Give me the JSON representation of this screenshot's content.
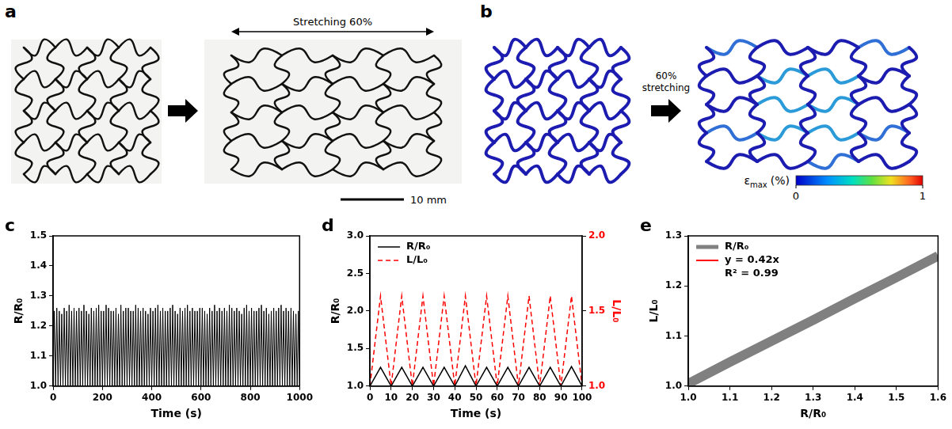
{
  "figure": {
    "a": {
      "panel": "a",
      "annotation": "Stretching 60%",
      "scale_bar": "10 mm"
    },
    "b": {
      "panel": "b",
      "annotation": "60% stretching",
      "colorbar": {
        "symbol": "ε",
        "subscript": "max",
        "unit": "(%)",
        "range": [
          0,
          1
        ],
        "ticks": [
          0,
          1
        ]
      }
    }
  },
  "chart_data": [
    {
      "panel": "c",
      "type": "line",
      "x": [
        0,
        5,
        10,
        15,
        20,
        25,
        30,
        35,
        40,
        45,
        50,
        55,
        60,
        65,
        70,
        75,
        80,
        85,
        90,
        95,
        100,
        105,
        110,
        115,
        120,
        125,
        130,
        135,
        140,
        145,
        150,
        155,
        160,
        165,
        170,
        175,
        180,
        185,
        190,
        195,
        200,
        205,
        210,
        215,
        220,
        225,
        230,
        235,
        240,
        245,
        250,
        255,
        260,
        265,
        270,
        275,
        280,
        285,
        290,
        295,
        300,
        305,
        310,
        315,
        320,
        325,
        330,
        335,
        340,
        345,
        350,
        355,
        360,
        365,
        370,
        375,
        380,
        385,
        390,
        395,
        400,
        405,
        410,
        415,
        420,
        425,
        430,
        435,
        440,
        445,
        450,
        455,
        460,
        465,
        470,
        475,
        480,
        485,
        490,
        495,
        500,
        505,
        510,
        515,
        520,
        525,
        530,
        535,
        540,
        545,
        550,
        555,
        560,
        565,
        570,
        575,
        580,
        585,
        590,
        595,
        600,
        605,
        610,
        615,
        620,
        625,
        630,
        635,
        640,
        645,
        650,
        655,
        660,
        665,
        670,
        675,
        680,
        685,
        690,
        695,
        700,
        705,
        710,
        715,
        720,
        725,
        730,
        735,
        740,
        745,
        750,
        755,
        760,
        765,
        770,
        775,
        780,
        785,
        790,
        795,
        800,
        805,
        810,
        815,
        820,
        825,
        830,
        835,
        840,
        845,
        850,
        855,
        860,
        865,
        870,
        875,
        880,
        885,
        890,
        895,
        900,
        905,
        910,
        915,
        920,
        925,
        930,
        935,
        940,
        945,
        950,
        955,
        960,
        965,
        970,
        975,
        980,
        985,
        990,
        995,
        1000
      ],
      "values": [
        1,
        1.25,
        1,
        1.26,
        1,
        1.25,
        1,
        1.24,
        1,
        1.26,
        1,
        1.25,
        1,
        1.27,
        1,
        1.25,
        1,
        1.26,
        1,
        1.25,
        1,
        1.26,
        1,
        1.25,
        1,
        1.27,
        1,
        1.25,
        1,
        1.24,
        1,
        1.26,
        1,
        1.25,
        1,
        1.26,
        1,
        1.27,
        1,
        1.25,
        1,
        1.25,
        1,
        1.27,
        1,
        1.26,
        1,
        1.25,
        1,
        1.25,
        1,
        1.26,
        1,
        1.24,
        1,
        1.27,
        1,
        1.25,
        1,
        1.26,
        1,
        1.26,
        1,
        1.25,
        1,
        1.25,
        1,
        1.27,
        1,
        1.26,
        1,
        1.25,
        1,
        1.26,
        1,
        1.25,
        1,
        1.24,
        1,
        1.26,
        1,
        1.25,
        1,
        1.26,
        1,
        1.27,
        1,
        1.25,
        1,
        1.26,
        1,
        1.25,
        1,
        1.25,
        1,
        1.26,
        1,
        1.27,
        1,
        1.25,
        1,
        1.24,
        1,
        1.26,
        1,
        1.25,
        1,
        1.26,
        1,
        1.27,
        1,
        1.25,
        1,
        1.26,
        1,
        1.25,
        1,
        1.25,
        1,
        1.26,
        1,
        1.26,
        1,
        1.25,
        1,
        1.24,
        1,
        1.26,
        1,
        1.25,
        1,
        1.27,
        1,
        1.25,
        1,
        1.26,
        1,
        1.25,
        1,
        1.26,
        1,
        1.25,
        1,
        1.27,
        1,
        1.26,
        1,
        1.25,
        1,
        1.26,
        1,
        1.25,
        1,
        1.24,
        1,
        1.26,
        1,
        1.27,
        1,
        1.25,
        1,
        1.26,
        1,
        1.25,
        1,
        1.25,
        1,
        1.26,
        1,
        1.27,
        1,
        1.25,
        1,
        1.26,
        1,
        1.24,
        1,
        1.25,
        1,
        1.26,
        1,
        1.25,
        1,
        1.26,
        1,
        1.27,
        1,
        1.25,
        1,
        1.26,
        1,
        1.25,
        1,
        1.26,
        1,
        1.25,
        1,
        1.24,
        1,
        1.25,
        1
      ],
      "color": "#000000",
      "x_label": "Time (s)",
      "y_label": "R/R₀",
      "xlim": [
        0,
        1000
      ],
      "xticks": [
        0,
        200,
        400,
        600,
        800,
        1000
      ],
      "ylim": [
        1,
        1.5
      ],
      "yticks": [
        {
          "value": 1,
          "label": "1.0"
        },
        1.1,
        1.2,
        1.3,
        1.4,
        1.5
      ],
      "grid": false
    },
    {
      "panel": "d",
      "type": "line",
      "x": [
        0,
        5,
        10,
        15,
        20,
        25,
        30,
        35,
        40,
        45,
        50,
        55,
        60,
        65,
        70,
        75,
        80,
        85,
        90,
        95,
        100
      ],
      "series": [
        {
          "name": "R/R₀",
          "color": "#000000",
          "line_style": "solid",
          "values": [
            1,
            1.25,
            1,
            1.25,
            1,
            1.25,
            1,
            1.25,
            1,
            1.27,
            1,
            1.25,
            1,
            1.25,
            1,
            1.25,
            1,
            1.25,
            1,
            1.26,
            1
          ]
        },
        {
          "name": "L/L₀",
          "color": "#ff0000",
          "line_style": "dashed",
          "axis": "y2",
          "values": [
            1,
            1.6,
            1,
            1.6,
            1,
            1.6,
            1,
            1.6,
            1,
            1.6,
            1,
            1.6,
            1,
            1.6,
            1,
            1.6,
            1,
            1.6,
            1,
            1.6,
            1
          ]
        }
      ],
      "x_label": "Time (s)",
      "y_label": "R/R₀",
      "y2_label": "L/L₀",
      "xlim": [
        0,
        100
      ],
      "xticks": [
        0,
        10,
        20,
        30,
        40,
        50,
        60,
        70,
        80,
        90,
        100
      ],
      "ylim": [
        1,
        3
      ],
      "yticks": [
        {
          "value": 1,
          "label": "1.0"
        },
        1.5,
        {
          "value": 2,
          "label": "2.0"
        },
        2.5,
        {
          "value": 3,
          "label": "3.0"
        }
      ],
      "y2lim": [
        1,
        2
      ],
      "y2ticks": [
        {
          "value": 1,
          "label": "1.0"
        },
        1.5,
        {
          "value": 2,
          "label": "2.0"
        }
      ],
      "legend": "upper left",
      "grid": false
    },
    {
      "panel": "e",
      "type": "line",
      "x": [
        1,
        1.1,
        1.2,
        1.3,
        1.4,
        1.5,
        1.6
      ],
      "series": [
        {
          "name": "R/R₀",
          "color": "#808080",
          "values": [
            1.005,
            1.048,
            1.09,
            1.132,
            1.175,
            1.217,
            1.26
          ]
        },
        {
          "name": "y = 0.42x",
          "color": "#ff0000",
          "values": [
            1.005,
            1.047,
            1.088,
            1.13,
            1.172,
            1.213,
            1.255
          ]
        }
      ],
      "annotations": [
        "R² = 0.99"
      ],
      "x_label": "R/R₀",
      "y_label": "L/L₀",
      "xlim": [
        1,
        1.6
      ],
      "xticks": [
        {
          "value": 1,
          "label": "1.0"
        },
        1.1,
        1.2,
        1.3,
        1.4,
        1.5,
        1.6
      ],
      "ylim": [
        1,
        1.3
      ],
      "yticks": [
        {
          "value": 1,
          "label": "1.0"
        },
        1.1,
        1.2,
        1.3
      ],
      "legend": "upper left",
      "grid": false
    }
  ]
}
